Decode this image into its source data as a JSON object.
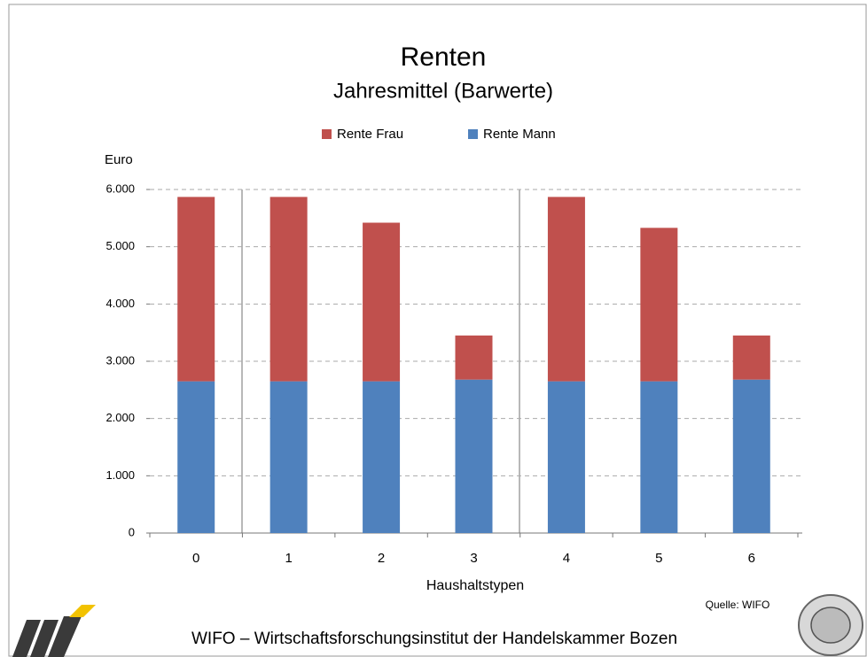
{
  "chart_data": {
    "type": "stacked-bar",
    "title": "Renten",
    "subtitle": "Jahresmittel (Barwerte)",
    "y_label": "Euro",
    "x_label": "Haushaltstypen",
    "source": "Quelle: WIFO",
    "footer": "WIFO – Wirtschaftsforschungsinstitut der Handelskammer Bozen",
    "categories": [
      "0",
      "1",
      "2",
      "3",
      "4",
      "5",
      "6"
    ],
    "series": [
      {
        "name": "Rente Frau",
        "color": "#c0504d",
        "values": [
          3220,
          3220,
          2770,
          770,
          3220,
          2680,
          770
        ]
      },
      {
        "name": "Rente Mann",
        "color": "#4f81bd",
        "values": [
          2650,
          2650,
          2650,
          2680,
          2650,
          2650,
          2680
        ]
      }
    ],
    "stack_order": [
      1,
      0
    ],
    "ylim": [
      0,
      6000
    ],
    "yticks": [
      0,
      {
        "value": 1000,
        "label": "1.000"
      },
      {
        "value": 2000,
        "label": "2.000"
      },
      {
        "value": 3000,
        "label": "3.000"
      },
      {
        "value": 4000,
        "label": "4.000"
      },
      {
        "value": 5000,
        "label": "5.000"
      },
      {
        "value": 6000,
        "label": "6.000"
      }
    ],
    "grid": true
  }
}
